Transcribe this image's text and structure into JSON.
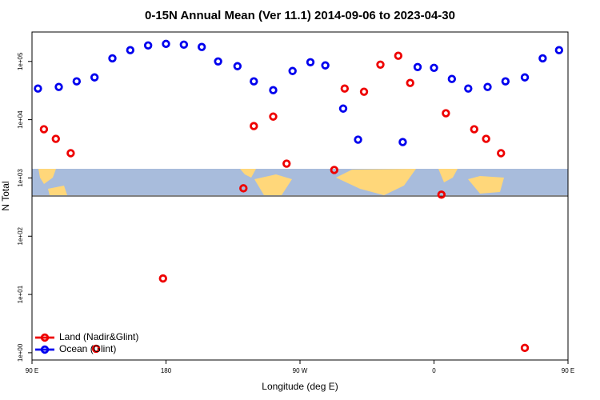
{
  "chart_data": {
    "type": "scatter",
    "title": "0-15N Annual Mean (Ver 11.1)   2014-09-06 to 2023-04-30",
    "x_label": "Longitude (deg E)",
    "y_label": "N Total",
    "log_y": true,
    "legend_corner": "lower left",
    "xlim": [
      90,
      450
    ],
    "xticks": [
      {
        "value": 90,
        "label": "90 E"
      },
      {
        "value": 180,
        "label": "180"
      },
      {
        "value": 270,
        "label": "90 W"
      },
      {
        "value": 360,
        "label": "0"
      },
      {
        "value": 450,
        "label": "90 E"
      }
    ],
    "xticks_extra": [],
    "ylim": [
      0.75,
      320000
    ],
    "yticks": [
      {
        "value": 1,
        "label": "1e+00"
      },
      {
        "value": 10,
        "label": "1e+01"
      },
      {
        "value": 100,
        "label": "1e+02"
      },
      {
        "value": 1000,
        "label": "1e+03"
      },
      {
        "value": 10000,
        "label": "1e+04"
      },
      {
        "value": 100000,
        "label": "1e+05"
      }
    ],
    "series": [
      {
        "name": "Land (Nadir&Glint)",
        "color": "#ee0000",
        "x": [
          98,
          106,
          116,
          133,
          178,
          232,
          239,
          252,
          261,
          293,
          300,
          313,
          324,
          336,
          344,
          365,
          368,
          387,
          395,
          405,
          421
        ],
        "values": [
          6850,
          4690,
          2660,
          1.17,
          18.8,
          664,
          7770,
          11300,
          1760,
          1370,
          34200,
          30200,
          88100,
          125000,
          42700,
          516,
          12900,
          6850,
          4690,
          2660,
          1.21
        ]
      },
      {
        "name": "Ocean (Glint)",
        "color": "#0000ee",
        "x": [
          94,
          108,
          120,
          132,
          144,
          156,
          168,
          180,
          192,
          204,
          215,
          228,
          239,
          252,
          265,
          277,
          287,
          299,
          309,
          339,
          349,
          360,
          372,
          383,
          396,
          408,
          421,
          433,
          444
        ],
        "values": [
          34200,
          36500,
          45500,
          53200,
          113000,
          156000,
          188000,
          200000,
          194000,
          177000,
          100000,
          82800,
          45500,
          32100,
          68500,
          96900,
          85500,
          15500,
          4550,
          4130,
          80200,
          77600,
          50000,
          34200,
          36500,
          45500,
          53200,
          113000,
          156000
        ]
      }
    ]
  }
}
